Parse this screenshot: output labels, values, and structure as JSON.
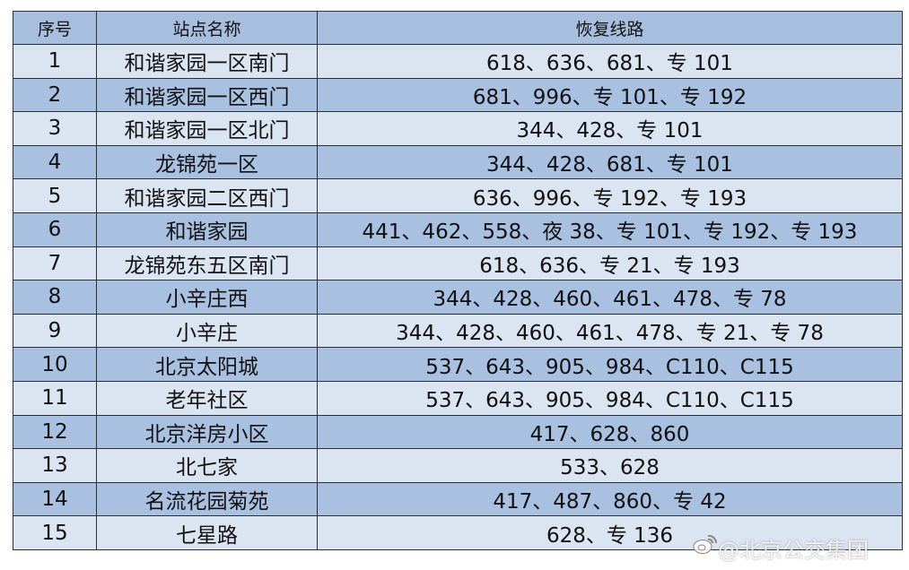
{
  "header": {
    "index": "序号",
    "station": "站点名称",
    "routes": "恢复线路"
  },
  "rows": [
    {
      "index": "1",
      "station": "和谐家园一区南门",
      "routes": "618、636、681、专 101"
    },
    {
      "index": "2",
      "station": "和谐家园一区西门",
      "routes": "681、996、专 101、专 192"
    },
    {
      "index": "3",
      "station": "和谐家园一区北门",
      "routes": "344、428、专 101"
    },
    {
      "index": "4",
      "station": "龙锦苑一区",
      "routes": "344、428、681、专 101"
    },
    {
      "index": "5",
      "station": "和谐家园二区西门",
      "routes": "636、996、专 192、专 193"
    },
    {
      "index": "6",
      "station": "和谐家园",
      "routes": "441、462、558、夜 38、专 101、专 192、专 193"
    },
    {
      "index": "7",
      "station": "龙锦苑东五区南门",
      "routes": "618、636、专 21、专 193"
    },
    {
      "index": "8",
      "station": "小辛庄西",
      "routes": "344、428、460、461、478、专 78"
    },
    {
      "index": "9",
      "station": "小辛庄",
      "routes": "344、428、460、461、478、专 21、专 78"
    },
    {
      "index": "10",
      "station": "北京太阳城",
      "routes": "537、643、905、984、C110、C115"
    },
    {
      "index": "11",
      "station": "老年社区",
      "routes": "537、643、905、984、C110、C115"
    },
    {
      "index": "12",
      "station": "北京洋房小区",
      "routes": "417、628、860"
    },
    {
      "index": "13",
      "station": "北七家",
      "routes": "533、628"
    },
    {
      "index": "14",
      "station": "名流花园菊苑",
      "routes": "417、487、860、专 42"
    },
    {
      "index": "15",
      "station": "七星路",
      "routes": "628、专 136"
    }
  ],
  "watermark": "@北京公交集团",
  "colors": {
    "header": "#a7bfdf",
    "row_light": "#dbe4f1",
    "row_dark": "#a9c1e0",
    "border": "#2a2f36"
  }
}
